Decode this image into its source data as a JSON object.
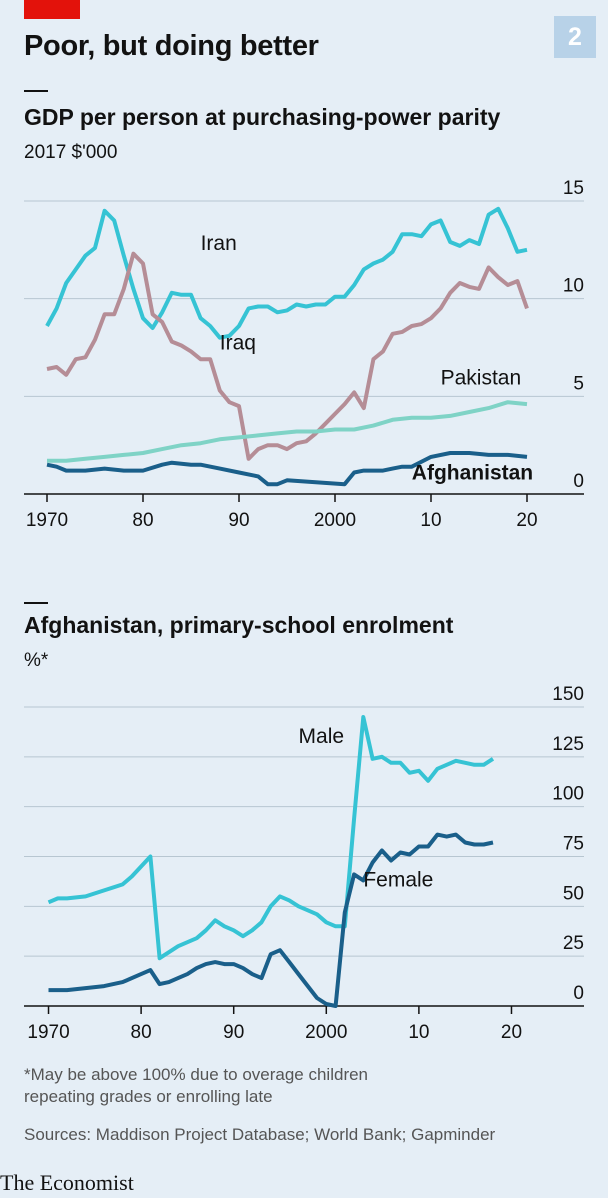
{
  "header": {
    "title": "Poor, but doing better",
    "chart_number": "2"
  },
  "colors": {
    "red": "#e3120b",
    "iran": "#36c3d4",
    "iraq": "#b58d96",
    "pakistan": "#7fd3c6",
    "afghanistan": "#1a5f8a",
    "male": "#36c3d4",
    "female": "#1a5f8a",
    "grid": "#b7c6d1"
  },
  "chart_data": [
    {
      "type": "line",
      "title": "GDP per person at purchasing-power parity",
      "ylabel": "2017 $'000",
      "ylim": [
        0,
        15
      ],
      "xlim": [
        1970,
        2020
      ],
      "yticks": [
        "0",
        "5",
        "10",
        "15"
      ],
      "xticks": [
        {
          "x": 1970,
          "label": "1970"
        },
        {
          "x": 1980,
          "label": "80"
        },
        {
          "x": 1990,
          "label": "90"
        },
        {
          "x": 2000,
          "label": "2000"
        },
        {
          "x": 2010,
          "label": "10"
        },
        {
          "x": 2020,
          "label": "20"
        }
      ],
      "series": [
        {
          "name": "Iran",
          "label_pos": [
            1986,
            12.5
          ],
          "x": [
            1970,
            1971,
            1972,
            1973,
            1974,
            1975,
            1976,
            1977,
            1978,
            1979,
            1980,
            1981,
            1982,
            1983,
            1984,
            1985,
            1986,
            1987,
            1988,
            1989,
            1990,
            1991,
            1992,
            1993,
            1994,
            1995,
            1996,
            1997,
            1998,
            1999,
            2000,
            2001,
            2002,
            2003,
            2004,
            2005,
            2006,
            2007,
            2008,
            2009,
            2010,
            2011,
            2012,
            2013,
            2014,
            2015,
            2016,
            2017,
            2018,
            2019,
            2020
          ],
          "y": [
            8.6,
            9.5,
            10.8,
            11.5,
            12.2,
            12.6,
            14.5,
            14.0,
            12.2,
            10.5,
            9.0,
            8.5,
            9.3,
            10.3,
            10.2,
            10.2,
            9.0,
            8.6,
            8.0,
            8.1,
            8.6,
            9.5,
            9.6,
            9.6,
            9.3,
            9.4,
            9.7,
            9.6,
            9.7,
            9.7,
            10.1,
            10.1,
            10.7,
            11.5,
            11.8,
            12.0,
            12.4,
            13.3,
            13.3,
            13.2,
            13.8,
            14.0,
            12.9,
            12.7,
            13.0,
            12.8,
            14.3,
            14.6,
            13.6,
            12.4,
            12.5
          ]
        },
        {
          "name": "Iraq",
          "label_pos": [
            1988,
            7.4
          ],
          "x": [
            1970,
            1971,
            1972,
            1973,
            1974,
            1975,
            1976,
            1977,
            1978,
            1979,
            1980,
            1981,
            1982,
            1983,
            1984,
            1985,
            1986,
            1987,
            1988,
            1989,
            1990,
            1991,
            1992,
            1993,
            1994,
            1995,
            1996,
            1997,
            1998,
            1999,
            2000,
            2001,
            2002,
            2003,
            2004,
            2005,
            2006,
            2007,
            2008,
            2009,
            2010,
            2011,
            2012,
            2013,
            2014,
            2015,
            2016,
            2017,
            2018,
            2019,
            2020
          ],
          "y": [
            6.4,
            6.5,
            6.1,
            6.9,
            7.0,
            7.9,
            9.2,
            9.2,
            10.5,
            12.3,
            11.8,
            9.2,
            8.8,
            7.8,
            7.6,
            7.3,
            6.9,
            6.9,
            5.3,
            4.7,
            4.5,
            1.8,
            2.3,
            2.5,
            2.5,
            2.3,
            2.6,
            2.7,
            3.1,
            3.6,
            4.1,
            4.6,
            5.2,
            4.4,
            6.9,
            7.3,
            8.2,
            8.3,
            8.6,
            8.7,
            9.0,
            9.5,
            10.3,
            10.8,
            10.6,
            10.5,
            11.6,
            11.1,
            10.7,
            10.9,
            9.5
          ]
        },
        {
          "name": "Pakistan",
          "label_pos": [
            2011,
            5.6
          ],
          "x": [
            1970,
            1972,
            1974,
            1976,
            1978,
            1980,
            1982,
            1984,
            1986,
            1988,
            1990,
            1992,
            1994,
            1996,
            1998,
            2000,
            2002,
            2004,
            2006,
            2008,
            2010,
            2012,
            2014,
            2016,
            2018,
            2020
          ],
          "y": [
            1.7,
            1.7,
            1.8,
            1.9,
            2.0,
            2.1,
            2.3,
            2.5,
            2.6,
            2.8,
            2.9,
            3.0,
            3.1,
            3.2,
            3.2,
            3.3,
            3.3,
            3.5,
            3.8,
            3.9,
            3.9,
            4.0,
            4.2,
            4.4,
            4.7,
            4.6
          ]
        },
        {
          "name": "Afghanistan",
          "label_pos": [
            2008,
            0.75
          ],
          "x": [
            1970,
            1971,
            1972,
            1974,
            1976,
            1978,
            1980,
            1982,
            1983,
            1985,
            1986,
            1988,
            1990,
            1992,
            1993,
            1994,
            1995,
            1998,
            2001,
            2002,
            2003,
            2005,
            2006,
            2007,
            2008,
            2010,
            2012,
            2014,
            2016,
            2018,
            2020
          ],
          "y": [
            1.5,
            1.4,
            1.2,
            1.2,
            1.3,
            1.2,
            1.2,
            1.5,
            1.6,
            1.5,
            1.5,
            1.3,
            1.1,
            0.9,
            0.5,
            0.5,
            0.7,
            0.6,
            0.5,
            1.1,
            1.2,
            1.2,
            1.3,
            1.4,
            1.4,
            1.9,
            2.1,
            2.1,
            2.0,
            2.0,
            1.9
          ]
        }
      ]
    },
    {
      "type": "line",
      "title": "Afghanistan, primary-school enrolment",
      "ylabel": "%*",
      "ylim": [
        0,
        150
      ],
      "xlim": [
        1968,
        2022
      ],
      "yticks": [
        "0",
        "25",
        "50",
        "75",
        "100",
        "125",
        "150"
      ],
      "xticks": [
        {
          "x": 1970,
          "label": "1970"
        },
        {
          "x": 1980,
          "label": "80"
        },
        {
          "x": 1990,
          "label": "90"
        },
        {
          "x": 2000,
          "label": "2000"
        },
        {
          "x": 2010,
          "label": "10"
        },
        {
          "x": 2020,
          "label": "20"
        }
      ],
      "series": [
        {
          "name": "Male",
          "label_pos": [
            1997,
            132
          ],
          "x": [
            1970,
            1971,
            1972,
            1974,
            1976,
            1978,
            1979,
            1980,
            1981,
            1982,
            1983,
            1984,
            1985,
            1986,
            1987,
            1988,
            1989,
            1990,
            1991,
            1992,
            1993,
            1994,
            1995,
            1996,
            1997,
            1998,
            1999,
            2000,
            2001,
            2002,
            2003,
            2004,
            2005,
            2006,
            2007,
            2008,
            2009,
            2010,
            2011,
            2012,
            2013,
            2014,
            2015,
            2016,
            2017,
            2018
          ],
          "y": [
            52,
            54,
            54,
            55,
            58,
            61,
            65,
            70,
            75,
            24,
            27,
            30,
            32,
            34,
            38,
            43,
            40,
            38,
            35,
            38,
            42,
            50,
            55,
            53,
            50,
            48,
            46,
            42,
            40,
            40,
            94,
            145,
            124,
            125,
            122,
            122,
            117,
            118,
            113,
            119,
            121,
            123,
            122,
            121,
            121,
            124
          ]
        },
        {
          "name": "Female",
          "label_pos": [
            2004,
            60
          ],
          "x": [
            1970,
            1972,
            1974,
            1976,
            1978,
            1980,
            1981,
            1982,
            1983,
            1984,
            1985,
            1986,
            1987,
            1988,
            1989,
            1990,
            1991,
            1992,
            1993,
            1994,
            1995,
            1996,
            1997,
            1998,
            1999,
            2000,
            2001,
            2002,
            2003,
            2004,
            2005,
            2006,
            2007,
            2008,
            2009,
            2010,
            2011,
            2012,
            2013,
            2014,
            2015,
            2016,
            2017,
            2018
          ],
          "y": [
            8,
            8,
            9,
            10,
            12,
            16,
            18,
            11,
            12,
            14,
            16,
            19,
            21,
            22,
            21,
            21,
            19,
            16,
            14,
            26,
            28,
            22,
            16,
            10,
            4,
            1,
            0,
            47,
            66,
            63,
            72,
            78,
            73,
            77,
            76,
            80,
            80,
            86,
            85,
            86,
            82,
            81,
            81,
            82
          ]
        }
      ]
    }
  ],
  "footnotes": {
    "note_line1": "*May be above 100% due to overage children",
    "note_line2": "repeating grades or enrolling late",
    "sources": "Sources: Maddison Project Database; World Bank; Gapminder"
  },
  "brand": "The Economist"
}
